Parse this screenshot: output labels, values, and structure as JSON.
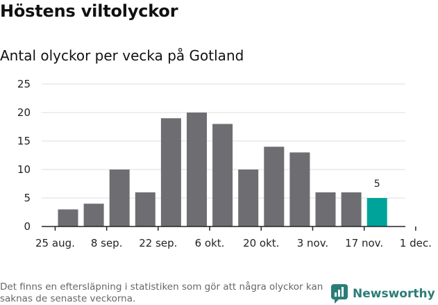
{
  "header": {
    "title": "Höstens viltolyckor",
    "subtitle": "Antal olyckor per vecka på Gotland"
  },
  "chart_data": {
    "type": "bar",
    "ylim": [
      0,
      25
    ],
    "yticks": [
      0,
      5,
      10,
      15,
      20,
      25
    ],
    "grid": true,
    "x_tick_labels": [
      "25 aug.",
      "8 sep.",
      "22 sep.",
      "6 okt.",
      "20 okt.",
      "3 nov.",
      "17 nov.",
      "1 dec."
    ],
    "values": [
      3,
      4,
      10,
      6,
      19,
      20,
      18,
      10,
      14,
      13,
      6,
      6,
      5
    ],
    "bar_color": "#6e6d72",
    "highlight_color": "#00a39a",
    "highlight_index": 12,
    "data_labels": [
      {
        "index": 12,
        "text": "5"
      }
    ]
  },
  "footer": {
    "note": "Det finns en eftersläpning i statistiken som gör att några olyckor kan saknas de senaste veckorna.",
    "brand": "Newsworthy",
    "brand_color": "#2a7d77",
    "brand_icon": "newsworthy-logo-icon"
  }
}
